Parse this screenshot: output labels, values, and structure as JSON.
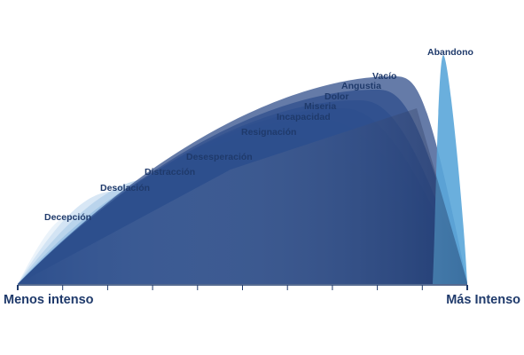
{
  "chart_data": {
    "type": "area",
    "categories": [
      "Decepción",
      "Desolación",
      "Distracción",
      "Desesperación",
      "Resignación",
      "Incapacidad",
      "Miseria",
      "Dolor",
      "Angustia",
      "Vacío",
      "Abandono"
    ],
    "values": [
      2.6,
      3.5,
      4.0,
      4.6,
      5.6,
      6.2,
      6.6,
      6.9,
      7.3,
      7.8,
      8.6
    ],
    "xlabel_left": "Menos intenso",
    "xlabel_right": "Más Intenso",
    "ylim": [
      0,
      10
    ],
    "axis_ticks": 11,
    "legend": "none",
    "grid": false,
    "colors": [
      "#e3eef8",
      "#c9def1",
      "#afcde9",
      "#92bbe1",
      "#76a8d7",
      "#5d93cb",
      "#4a7fbd",
      "#3c6bab",
      "#325999",
      "#2a4886",
      "#5aa6d9"
    ]
  }
}
